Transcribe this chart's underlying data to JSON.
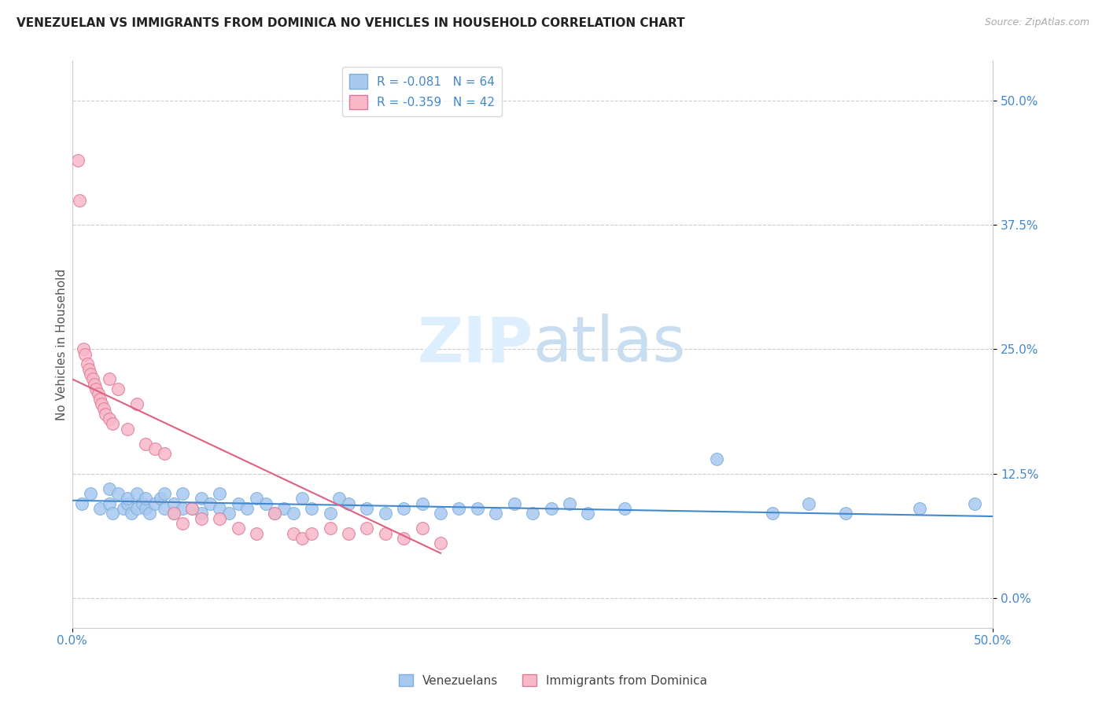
{
  "title": "VENEZUELAN VS IMMIGRANTS FROM DOMINICA NO VEHICLES IN HOUSEHOLD CORRELATION CHART",
  "source": "Source: ZipAtlas.com",
  "ylabel": "No Vehicles in Household",
  "ytick_values": [
    0.0,
    12.5,
    25.0,
    37.5,
    50.0
  ],
  "xlim": [
    0.0,
    50.0
  ],
  "ylim": [
    -3.0,
    54.0
  ],
  "venezuelan_R": -0.081,
  "venezuelan_N": 64,
  "dominica_R": -0.359,
  "dominica_N": 42,
  "blue_color": "#a8c8f0",
  "blue_edge": "#7ab0d8",
  "pink_color": "#f8b8c8",
  "pink_edge": "#e07898",
  "blue_line_color": "#4488cc",
  "pink_line_color": "#e06080",
  "watermark_color": "#ddeeff",
  "venezuelan_x": [
    0.5,
    1.0,
    1.5,
    2.0,
    2.0,
    2.2,
    2.5,
    2.8,
    3.0,
    3.0,
    3.2,
    3.5,
    3.5,
    3.8,
    4.0,
    4.0,
    4.2,
    4.5,
    4.8,
    5.0,
    5.0,
    5.5,
    5.5,
    6.0,
    6.0,
    6.5,
    7.0,
    7.0,
    7.5,
    8.0,
    8.0,
    8.5,
    9.0,
    9.5,
    10.0,
    10.5,
    11.0,
    11.5,
    12.0,
    12.5,
    13.0,
    14.0,
    14.5,
    15.0,
    16.0,
    17.0,
    18.0,
    19.0,
    20.0,
    21.0,
    22.0,
    23.0,
    24.0,
    25.0,
    26.0,
    27.0,
    28.0,
    30.0,
    35.0,
    38.0,
    40.0,
    42.0,
    46.0,
    49.0
  ],
  "venezuelan_y": [
    9.5,
    10.5,
    9.0,
    9.5,
    11.0,
    8.5,
    10.5,
    9.0,
    9.5,
    10.0,
    8.5,
    9.0,
    10.5,
    9.5,
    9.0,
    10.0,
    8.5,
    9.5,
    10.0,
    9.0,
    10.5,
    8.5,
    9.5,
    9.0,
    10.5,
    9.0,
    8.5,
    10.0,
    9.5,
    9.0,
    10.5,
    8.5,
    9.5,
    9.0,
    10.0,
    9.5,
    8.5,
    9.0,
    8.5,
    10.0,
    9.0,
    8.5,
    10.0,
    9.5,
    9.0,
    8.5,
    9.0,
    9.5,
    8.5,
    9.0,
    9.0,
    8.5,
    9.5,
    8.5,
    9.0,
    9.5,
    8.5,
    9.0,
    14.0,
    8.5,
    9.5,
    8.5,
    9.0,
    9.5
  ],
  "dominica_x": [
    0.3,
    0.4,
    0.6,
    0.7,
    0.8,
    0.9,
    1.0,
    1.1,
    1.2,
    1.3,
    1.4,
    1.5,
    1.6,
    1.7,
    1.8,
    2.0,
    2.0,
    2.2,
    2.5,
    3.0,
    3.5,
    4.0,
    4.5,
    5.0,
    5.5,
    6.0,
    6.5,
    7.0,
    8.0,
    9.0,
    10.0,
    11.0,
    12.0,
    12.5,
    13.0,
    14.0,
    15.0,
    16.0,
    17.0,
    18.0,
    19.0,
    20.0
  ],
  "dominica_y": [
    44.0,
    40.0,
    25.0,
    24.5,
    23.5,
    23.0,
    22.5,
    22.0,
    21.5,
    21.0,
    20.5,
    20.0,
    19.5,
    19.0,
    18.5,
    18.0,
    22.0,
    17.5,
    21.0,
    17.0,
    19.5,
    15.5,
    15.0,
    14.5,
    8.5,
    7.5,
    9.0,
    8.0,
    8.0,
    7.0,
    6.5,
    8.5,
    6.5,
    6.0,
    6.5,
    7.0,
    6.5,
    7.0,
    6.5,
    6.0,
    7.0,
    5.5
  ],
  "ven_line_x": [
    0.0,
    50.0
  ],
  "ven_line_y": [
    9.8,
    8.2
  ],
  "dom_line_x": [
    0.0,
    20.0
  ],
  "dom_line_y": [
    22.0,
    4.5
  ]
}
